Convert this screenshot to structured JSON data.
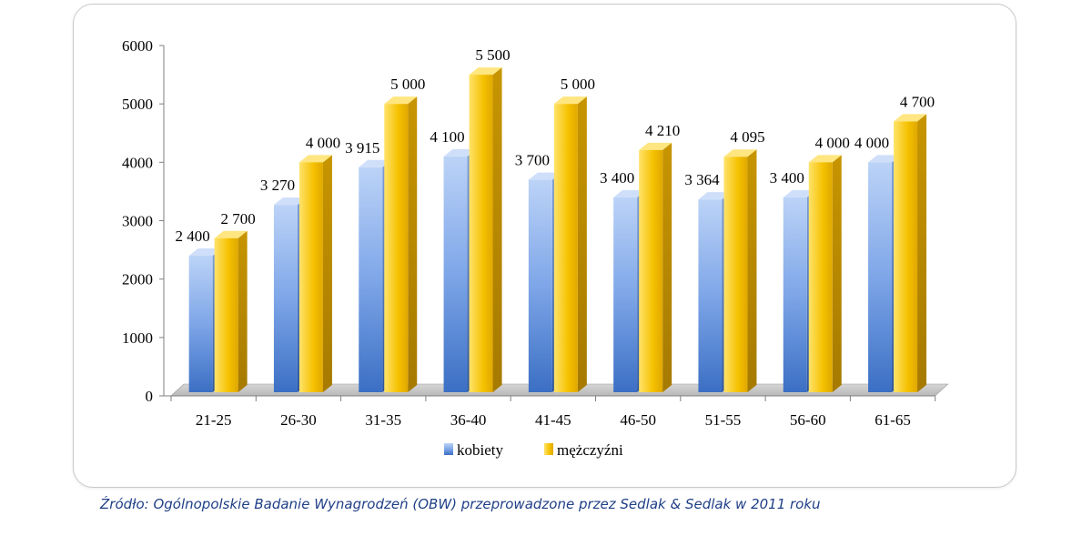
{
  "source": "Źródło: Ogólnopolskie Badanie Wynagrodzeń (OBW) przeprowadzone przez  Sedlak & Sedlak w 2011 roku",
  "chart_data": {
    "type": "bar",
    "title": "",
    "xlabel": "",
    "ylabel": "",
    "categories": [
      "21-25",
      "26-30",
      "31-35",
      "36-40",
      "41-45",
      "46-50",
      "51-55",
      "56-60",
      "61-65"
    ],
    "series": [
      {
        "name": "kobiety",
        "values": [
          2400,
          3270,
          3915,
          4100,
          3700,
          3400,
          3364,
          3400,
          4000
        ],
        "labels": [
          "2 400",
          "3 270",
          "3 915",
          "4 100",
          "3 700",
          "3 400",
          "3 364",
          "3 400",
          "4 000"
        ],
        "color": "#4a7fd4"
      },
      {
        "name": "mężczyźni",
        "values": [
          2700,
          4000,
          5000,
          5500,
          5000,
          4210,
          4095,
          4000,
          4700
        ],
        "labels": [
          "2 700",
          "4 000",
          "5 000",
          "5 500",
          "5 000",
          "4 210",
          "4 095",
          "4 000",
          "4 700"
        ],
        "color": "#f2b800"
      }
    ],
    "ylim": [
      0,
      6000
    ],
    "yticks": [
      0,
      1000,
      2000,
      3000,
      4000,
      5000,
      6000
    ],
    "ytick_labels": [
      "0",
      "1000",
      "2000",
      "3000",
      "4000",
      "5000",
      "6000"
    ],
    "grid": false,
    "legend_position": "bottom",
    "style": "3d-columns"
  }
}
